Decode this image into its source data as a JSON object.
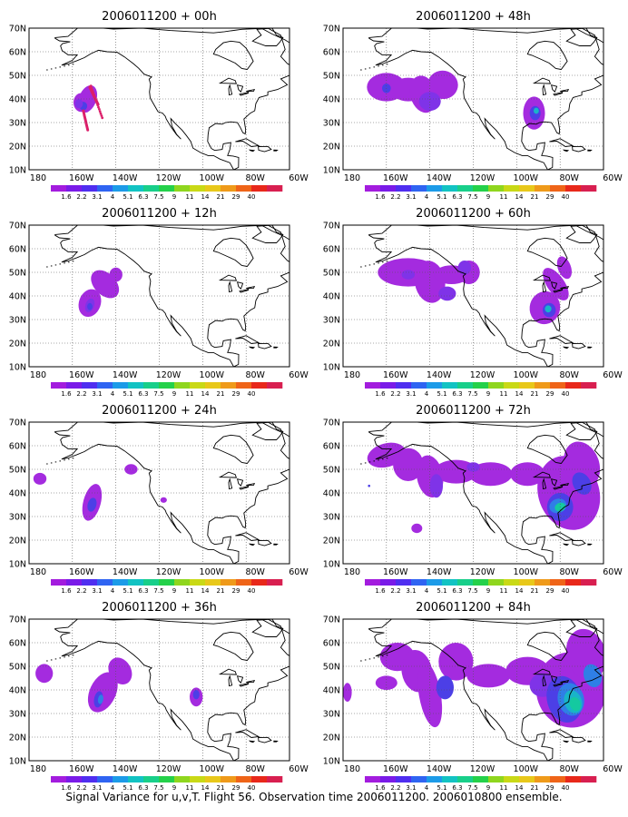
{
  "caption": "Signal Variance for u,v,T. Flight 56. Observation time 2006011200. 2006010800 ensemble.",
  "lat_labels": [
    "70N",
    "60N",
    "50N",
    "40N",
    "30N",
    "20N",
    "10N"
  ],
  "lon_labels": [
    "180",
    "160W",
    "140W",
    "120W",
    "100W",
    "80W",
    "60W"
  ],
  "colorbar": {
    "labels": [
      "1.6",
      "2.2",
      "3.1",
      "4",
      "5.1",
      "6.3",
      "7.5",
      "9",
      "11",
      "14",
      "21",
      "29",
      "40"
    ],
    "colors": [
      "#a31cde",
      "#7a1be8",
      "#4f2ef0",
      "#2f64f2",
      "#1c9be8",
      "#12c3c3",
      "#18cf8a",
      "#24d14a",
      "#8fd61e",
      "#c9d916",
      "#e8c81a",
      "#ef9a1a",
      "#ef6418",
      "#e8281a",
      "#d81f50"
    ]
  },
  "panels": [
    {
      "title": "2006011200 + 00h"
    },
    {
      "title": "2006011200 + 48h"
    },
    {
      "title": "2006011200 + 12h"
    },
    {
      "title": "2006011200 + 60h"
    },
    {
      "title": "2006011200 + 24h"
    },
    {
      "title": "2006011200 + 72h"
    },
    {
      "title": "2006011200 + 36h"
    },
    {
      "title": "2006011200 + 84h"
    }
  ],
  "fill_colors": {
    "outer": "#a42bdf",
    "level2": "#7f33e8",
    "level3": "#4c3fe6",
    "level4": "#2f7fe6",
    "level5": "#19b4c8",
    "level6": "#14c9a0",
    "point": "#dc1f6a"
  }
}
